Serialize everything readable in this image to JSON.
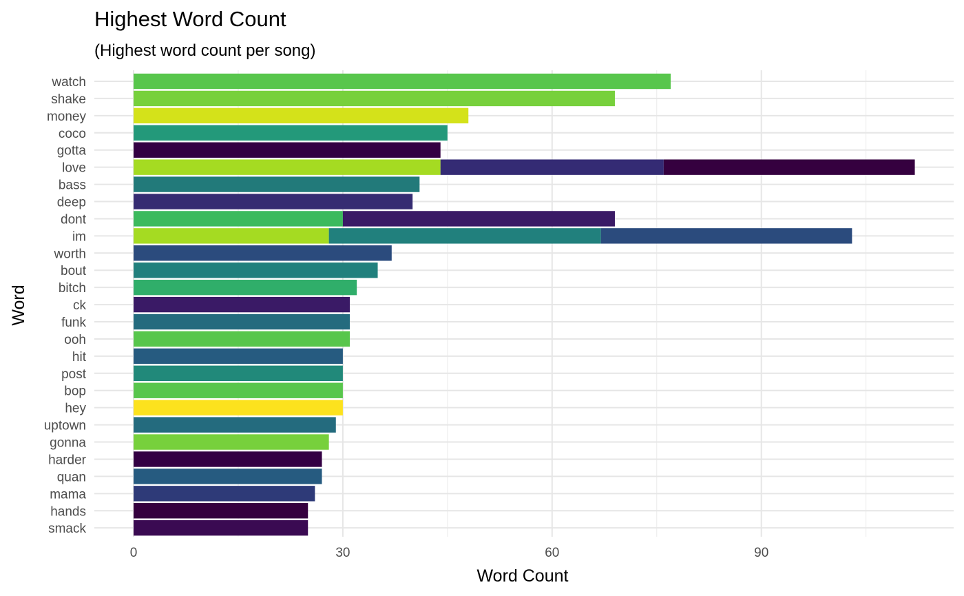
{
  "chart_data": {
    "type": "bar",
    "orientation": "horizontal",
    "stacked": true,
    "title": "Highest Word Count",
    "subtitle": "(Highest word count per song)",
    "xlabel": "Word Count",
    "ylabel": "Word",
    "xlim": [
      0,
      114
    ],
    "xticks": [
      0,
      30,
      60,
      90
    ],
    "grid": true,
    "legend": "none",
    "categories": [
      "watch",
      "shake",
      "money",
      "coco",
      "gotta",
      "love",
      "bass",
      "deep",
      "dont",
      "im",
      "worth",
      "bout",
      "bitch",
      "ck",
      "funk",
      "ooh",
      "hit",
      "post",
      "bop",
      "hey",
      "uptown",
      "gonna",
      "harder",
      "quan",
      "mama",
      "hands",
      "smack"
    ],
    "bars": [
      {
        "word": "watch",
        "segments": [
          {
            "value": 77,
            "color": "#58c64c"
          }
        ]
      },
      {
        "word": "shake",
        "segments": [
          {
            "value": 69,
            "color": "#77d03c"
          }
        ]
      },
      {
        "word": "money",
        "segments": [
          {
            "value": 48,
            "color": "#d4e21a"
          }
        ]
      },
      {
        "word": "coco",
        "segments": [
          {
            "value": 45,
            "color": "#23997a"
          }
        ]
      },
      {
        "word": "gotta",
        "segments": [
          {
            "value": 44,
            "color": "#330043"
          }
        ]
      },
      {
        "word": "love",
        "segments": [
          {
            "value": 44,
            "color": "#a5db22"
          },
          {
            "value": 32,
            "color": "#342b74"
          },
          {
            "value": 36,
            "color": "#35003f"
          }
        ]
      },
      {
        "word": "bass",
        "segments": [
          {
            "value": 41,
            "color": "#227a7a"
          }
        ]
      },
      {
        "word": "deep",
        "segments": [
          {
            "value": 40,
            "color": "#362c72"
          }
        ]
      },
      {
        "word": "dont",
        "segments": [
          {
            "value": 30,
            "color": "#3cba5d"
          },
          {
            "value": 39,
            "color": "#3a1a66"
          }
        ]
      },
      {
        "word": "im",
        "segments": [
          {
            "value": 28,
            "color": "#a5db22"
          },
          {
            "value": 39,
            "color": "#21807d"
          },
          {
            "value": 36,
            "color": "#2b4b7d"
          }
        ]
      },
      {
        "word": "worth",
        "segments": [
          {
            "value": 37,
            "color": "#2b4b7d"
          }
        ]
      },
      {
        "word": "bout",
        "segments": [
          {
            "value": 35,
            "color": "#21807d"
          }
        ]
      },
      {
        "word": "bitch",
        "segments": [
          {
            "value": 32,
            "color": "#30ae6a"
          }
        ]
      },
      {
        "word": "ck",
        "segments": [
          {
            "value": 31,
            "color": "#3a1a66"
          }
        ]
      },
      {
        "word": "funk",
        "segments": [
          {
            "value": 31,
            "color": "#246b7e"
          }
        ]
      },
      {
        "word": "ooh",
        "segments": [
          {
            "value": 31,
            "color": "#58c64c"
          }
        ]
      },
      {
        "word": "hit",
        "segments": [
          {
            "value": 30,
            "color": "#265b80"
          }
        ]
      },
      {
        "word": "post",
        "segments": [
          {
            "value": 30,
            "color": "#21897a"
          }
        ]
      },
      {
        "word": "bop",
        "segments": [
          {
            "value": 30,
            "color": "#58c64c"
          }
        ]
      },
      {
        "word": "hey",
        "segments": [
          {
            "value": 30,
            "color": "#fce21e"
          }
        ]
      },
      {
        "word": "uptown",
        "segments": [
          {
            "value": 29,
            "color": "#246b7e"
          }
        ]
      },
      {
        "word": "gonna",
        "segments": [
          {
            "value": 28,
            "color": "#77d03c"
          }
        ]
      },
      {
        "word": "harder",
        "segments": [
          {
            "value": 27,
            "color": "#330043"
          }
        ]
      },
      {
        "word": "quan",
        "segments": [
          {
            "value": 27,
            "color": "#265b80"
          }
        ]
      },
      {
        "word": "mama",
        "segments": [
          {
            "value": 26,
            "color": "#2e3a78"
          }
        ]
      },
      {
        "word": "hands",
        "segments": [
          {
            "value": 25,
            "color": "#35003f"
          }
        ]
      },
      {
        "word": "smack",
        "segments": [
          {
            "value": 25,
            "color": "#3a0a52"
          }
        ]
      }
    ]
  }
}
